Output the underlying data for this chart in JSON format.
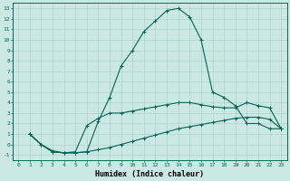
{
  "xlabel": "Humidex (Indice chaleur)",
  "bg_color": "#cce8e4",
  "grid_color": "#aad4cc",
  "line_color": "#006655",
  "xlim": [
    -0.5,
    23.5
  ],
  "ylim": [
    -1.5,
    13.5
  ],
  "xticks": [
    0,
    1,
    2,
    3,
    4,
    5,
    6,
    7,
    8,
    9,
    10,
    11,
    12,
    13,
    14,
    15,
    16,
    17,
    18,
    19,
    20,
    21,
    22,
    23
  ],
  "yticks": [
    -1,
    0,
    1,
    2,
    3,
    4,
    5,
    6,
    7,
    8,
    9,
    10,
    11,
    12,
    13
  ],
  "line1_x": [
    1,
    2,
    3,
    4,
    5,
    6,
    7,
    8,
    9,
    10,
    11,
    12,
    13,
    14,
    15,
    16,
    17,
    18,
    19,
    20,
    21,
    22,
    23
  ],
  "line1_y": [
    1.0,
    0.0,
    -0.6,
    -0.8,
    -0.8,
    -0.7,
    2.2,
    4.5,
    7.5,
    9.0,
    10.8,
    11.8,
    12.8,
    13.0,
    12.2,
    10.0,
    5.0,
    4.5,
    3.7,
    2.0,
    2.0,
    1.5,
    1.5
  ],
  "line2_x": [
    1,
    2,
    3,
    4,
    5,
    6,
    7,
    8,
    9,
    10,
    11,
    12,
    13,
    14,
    15,
    16,
    17,
    18,
    19,
    20,
    21,
    22,
    23
  ],
  "line2_y": [
    1.0,
    0.0,
    -0.7,
    -0.8,
    -0.7,
    1.8,
    2.5,
    3.0,
    3.0,
    3.2,
    3.4,
    3.6,
    3.8,
    4.0,
    4.0,
    3.8,
    3.6,
    3.5,
    3.5,
    4.0,
    3.7,
    3.5,
    1.5
  ],
  "line3_x": [
    1,
    2,
    3,
    4,
    5,
    6,
    7,
    8,
    9,
    10,
    11,
    12,
    13,
    14,
    15,
    16,
    17,
    18,
    19,
    20,
    21,
    22,
    23
  ],
  "line3_y": [
    1.0,
    0.0,
    -0.7,
    -0.8,
    -0.8,
    -0.7,
    -0.5,
    -0.3,
    0.0,
    0.3,
    0.6,
    0.9,
    1.2,
    1.5,
    1.7,
    1.9,
    2.1,
    2.3,
    2.5,
    2.6,
    2.6,
    2.4,
    1.5
  ]
}
